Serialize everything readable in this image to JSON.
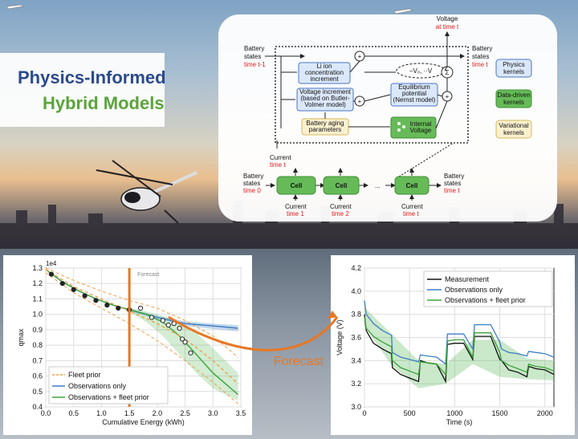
{
  "title": {
    "line1": "Physics-Informed",
    "line2": "Hybrid Models"
  },
  "diagram": {
    "states_t1": [
      "Battery",
      "states"
    ],
    "time_t1": "time t-1",
    "current_top": "Current",
    "time_t_top": "time t",
    "li_ion": [
      "Li ion",
      "concentration",
      "increment"
    ],
    "voltage_inc": [
      "Voltage increment",
      "(based on Butler-",
      "Volmer model)"
    ],
    "aging": [
      "Battery aging",
      "parameters"
    ],
    "equilibrium": [
      "Equilibrium",
      "potential",
      "(Nernst model)"
    ],
    "internal": [
      "Internal",
      "Voltage"
    ],
    "formula": "−V₀, ··V",
    "sum": "Σ",
    "voltage_out": "Voltage",
    "voltage_time": "at time t",
    "states_out": [
      "Battery",
      "states"
    ],
    "states_out_time": "time t",
    "states_0": [
      "Battery",
      "states"
    ],
    "time_0": "time 0",
    "cell": "Cell",
    "dots": "...",
    "current_lbl": "Current",
    "current_times": [
      "time 1",
      "time 2",
      "time t"
    ],
    "states_end": [
      "Battery",
      "states"
    ],
    "states_end_time": "time t",
    "legend": [
      {
        "lines": [
          "Physics",
          "kernels"
        ],
        "fill": "#dbe8fb",
        "stroke": "#4a76c8"
      },
      {
        "lines": [
          "Data-driven",
          "kernels"
        ],
        "fill": "#66bb58",
        "stroke": "#3e8f33"
      },
      {
        "lines": [
          "Variational",
          "kernels"
        ],
        "fill": "#fbf1cf",
        "stroke": "#d9b65a"
      }
    ]
  },
  "forecast_label": "Forecast",
  "chart_data": [
    {
      "type": "line",
      "ylabel": "qmax",
      "xlabel": "Cumulative Energy (kWh)",
      "scale_label": "1e4",
      "forecast_marker": "Forecast",
      "xlim": [
        0.0,
        3.5
      ],
      "ylim": [
        0.4,
        1.3
      ],
      "xticks": [
        "0.0",
        "0.5",
        "1.0",
        "1.5",
        "2.0",
        "2.5",
        "3.0",
        "3.5"
      ],
      "yticks": [
        "0.4",
        "0.5",
        "0.6",
        "0.7",
        "0.8",
        "0.9",
        "1.0",
        "1.1",
        "1.2",
        "1.3"
      ],
      "forecast_start": 1.5,
      "legend": [
        "Fleet prior",
        "Observations only",
        "Observations + fleet prior"
      ],
      "series": [
        {
          "name": "Observations only",
          "color": "#3d7fc4",
          "x": [
            0.0,
            0.3,
            0.6,
            0.9,
            1.2,
            1.5,
            2.0,
            2.5,
            3.0,
            3.45
          ],
          "y": [
            1.29,
            1.21,
            1.15,
            1.1,
            1.06,
            1.03,
            0.98,
            0.94,
            0.925,
            0.91
          ]
        },
        {
          "name": "Observations + fleet prior",
          "color": "#3aa33a",
          "x": [
            0.0,
            0.3,
            0.6,
            0.9,
            1.2,
            1.5,
            1.8,
            2.1,
            2.4,
            2.7,
            3.0,
            3.45
          ],
          "y": [
            1.29,
            1.21,
            1.15,
            1.1,
            1.06,
            1.03,
            1.0,
            0.95,
            0.86,
            0.74,
            0.62,
            0.48
          ]
        },
        {
          "name": "Fleet prior",
          "color": "#f0a04b",
          "x": [
            0.0,
            0.5,
            1.0,
            1.5,
            2.0,
            2.5,
            3.0,
            3.45
          ],
          "y": [
            1.29,
            1.18,
            1.1,
            1.02,
            0.94,
            0.84,
            0.7,
            0.55
          ]
        }
      ],
      "band_obs": {
        "x": [
          1.5,
          2.0,
          2.5,
          3.0,
          3.45
        ],
        "lo": [
          1.02,
          0.97,
          0.925,
          0.905,
          0.89
        ],
        "hi": [
          1.04,
          0.99,
          0.955,
          0.94,
          0.93
        ]
      },
      "band_fleet": {
        "x": [
          1.5,
          1.8,
          2.1,
          2.4,
          2.7,
          3.0,
          3.45
        ],
        "lo": [
          1.02,
          0.95,
          0.86,
          0.74,
          0.62,
          0.52,
          0.44
        ],
        "hi": [
          1.04,
          1.02,
          0.99,
          0.95,
          0.88,
          0.78,
          0.62
        ]
      },
      "prior_bounds": [
        {
          "x": [
            0.0,
            0.5,
            1.0,
            1.5,
            2.0,
            2.5,
            3.0,
            3.45
          ],
          "y": [
            1.3,
            1.22,
            1.15,
            1.09,
            1.04,
            0.96,
            0.86,
            0.72
          ]
        },
        {
          "x": [
            0.0,
            0.5,
            1.0,
            1.5,
            2.0,
            2.5,
            3.0,
            3.45
          ],
          "y": [
            1.27,
            1.14,
            1.04,
            0.94,
            0.83,
            0.7,
            0.56,
            0.42
          ]
        }
      ],
      "observations": {
        "x": [
          0.1,
          0.3,
          0.5,
          0.7,
          0.9,
          1.1,
          1.3,
          1.5,
          1.7,
          1.9,
          2.1,
          2.2,
          2.3,
          2.4,
          2.45,
          2.5,
          2.6
        ],
        "y": [
          1.26,
          1.2,
          1.16,
          1.12,
          1.09,
          1.06,
          1.04,
          1.03,
          1.04,
          0.98,
          0.96,
          0.93,
          0.94,
          0.91,
          0.84,
          0.82,
          0.75
        ]
      }
    },
    {
      "type": "line",
      "ylabel": "Voltage (V)",
      "xlabel": "Time (s)",
      "xlim": [
        0,
        2100
      ],
      "ylim": [
        3.0,
        4.2
      ],
      "xticks": [
        "0",
        "500",
        "1000",
        "1500",
        "2000"
      ],
      "yticks": [
        "3.0",
        "3.2",
        "3.4",
        "3.6",
        "3.8",
        "4.0",
        "4.2"
      ],
      "legend": [
        "Measurement",
        "Observations only",
        "Observations + fleet prior"
      ],
      "series": [
        {
          "name": "Measurement",
          "color": "#111111",
          "x": [
            0,
            20,
            100,
            200,
            300,
            310,
            400,
            500,
            600,
            620,
            700,
            800,
            900,
            920,
            1000,
            1100,
            1200,
            1220,
            1300,
            1400,
            1500,
            1520,
            1600,
            1700,
            1800,
            1820,
            1900,
            2000,
            2100
          ],
          "y": [
            3.8,
            3.66,
            3.55,
            3.5,
            3.46,
            3.34,
            3.28,
            3.25,
            3.22,
            3.4,
            3.38,
            3.37,
            3.22,
            3.54,
            3.55,
            3.55,
            3.41,
            3.61,
            3.61,
            3.61,
            3.41,
            3.4,
            3.32,
            3.3,
            3.26,
            3.35,
            3.33,
            3.32,
            3.28
          ]
        },
        {
          "name": "Observations only",
          "color": "#3d7fc4",
          "x": [
            0,
            20,
            100,
            200,
            300,
            310,
            400,
            500,
            600,
            620,
            700,
            800,
            900,
            920,
            1000,
            1100,
            1200,
            1220,
            1300,
            1400,
            1500,
            1520,
            1600,
            1700,
            1800,
            1820,
            1900,
            2000,
            2100
          ],
          "y": [
            3.92,
            3.8,
            3.72,
            3.66,
            3.62,
            3.47,
            3.43,
            3.41,
            3.39,
            3.45,
            3.44,
            3.43,
            3.37,
            3.63,
            3.63,
            3.63,
            3.5,
            3.71,
            3.71,
            3.71,
            3.56,
            3.5,
            3.47,
            3.46,
            3.44,
            3.48,
            3.47,
            3.46,
            3.43
          ]
        },
        {
          "name": "Observations + fleet prior",
          "color": "#3aa33a",
          "x": [
            0,
            20,
            100,
            200,
            300,
            310,
            400,
            500,
            600,
            620,
            700,
            800,
            900,
            920,
            1000,
            1100,
            1200,
            1220,
            1300,
            1400,
            1500,
            1520,
            1600,
            1700,
            1800,
            1820,
            1900,
            2000,
            2100
          ],
          "y": [
            3.78,
            3.68,
            3.61,
            3.56,
            3.52,
            3.4,
            3.34,
            3.31,
            3.28,
            3.39,
            3.38,
            3.37,
            3.28,
            3.57,
            3.58,
            3.58,
            3.43,
            3.64,
            3.64,
            3.64,
            3.47,
            3.4,
            3.36,
            3.33,
            3.3,
            3.37,
            3.35,
            3.34,
            3.31
          ]
        }
      ],
      "band": {
        "x": [
          0,
          300,
          600,
          900,
          1200,
          1500,
          1800,
          2100
        ],
        "lo": [
          3.7,
          3.36,
          3.16,
          3.2,
          3.37,
          3.26,
          3.24,
          3.23
        ],
        "hi": [
          3.86,
          3.63,
          3.4,
          3.37,
          3.58,
          3.58,
          3.42,
          3.4
        ]
      }
    }
  ]
}
